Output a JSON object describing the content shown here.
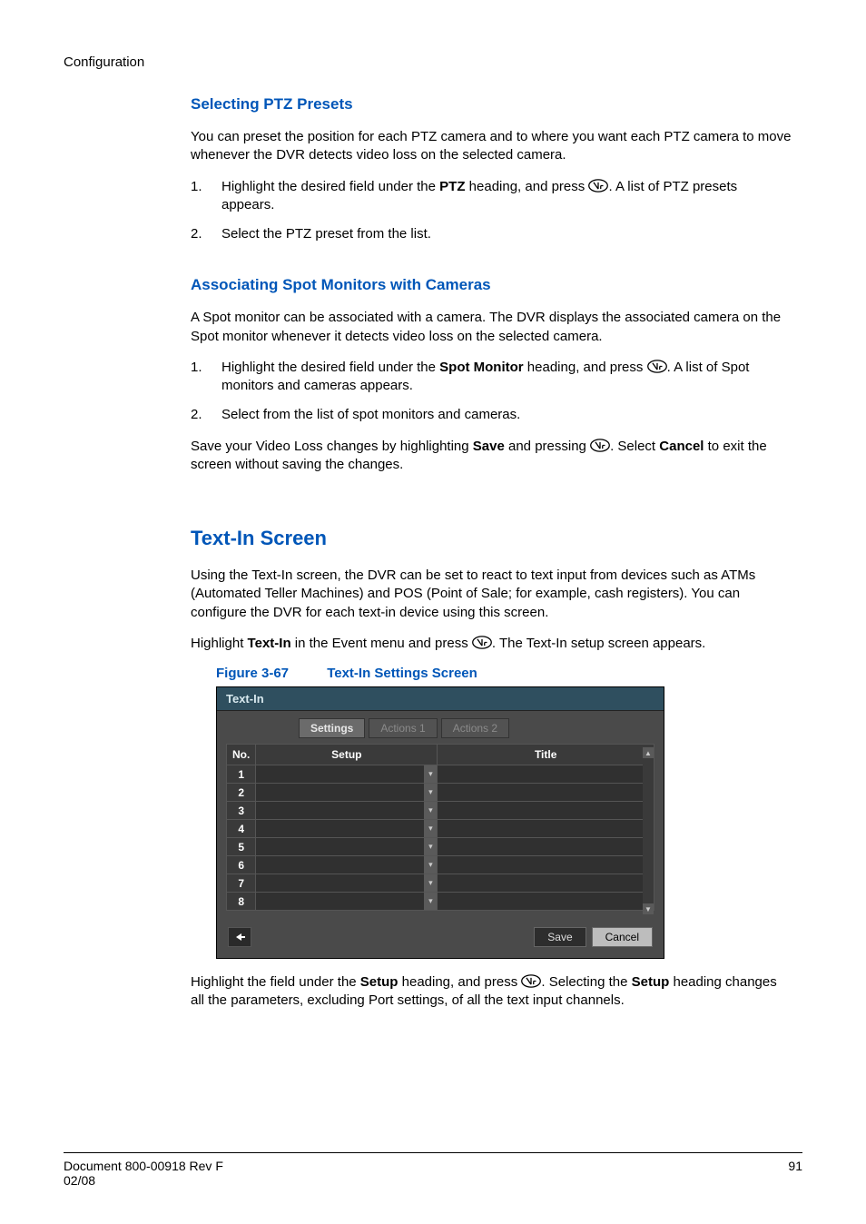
{
  "header": {
    "running_head": "Configuration"
  },
  "section1": {
    "heading": "Selecting PTZ Presets",
    "intro": "You can preset the position for each PTZ camera and to where you want each PTZ camera to move whenever the DVR detects video loss on the selected camera.",
    "step1_a": "Highlight the desired field under the ",
    "step1_bold": "PTZ",
    "step1_b": " heading, and press ",
    "step1_c": ". A list of PTZ presets appears.",
    "step2": "Select the PTZ preset from the list."
  },
  "section2": {
    "heading": "Associating Spot Monitors with Cameras",
    "intro": "A Spot monitor can be associated with a camera. The DVR displays the associated camera on the Spot monitor whenever it detects video loss on the selected camera.",
    "step1_a": "Highlight the desired field under the ",
    "step1_bold": "Spot Monitor",
    "step1_b": " heading, and press ",
    "step1_c": ". A list of Spot monitors and cameras appears.",
    "step2": "Select from the list of spot monitors and cameras.",
    "save_a": "Save your Video Loss changes by highlighting ",
    "save_bold1": "Save",
    "save_b": " and pressing ",
    "save_c": ". Select ",
    "save_bold2": "Cancel",
    "save_d": " to exit the screen without saving the changes."
  },
  "section3": {
    "heading": "Text-In Screen",
    "intro": "Using the Text-In screen, the DVR can be set to react to text input from devices such as ATMs (Automated Teller Machines) and POS (Point of Sale; for example, cash registers). You can configure the DVR for each text-in device using this screen.",
    "hl_a": "Highlight ",
    "hl_bold": "Text-In",
    "hl_b": " in the Event menu and press ",
    "hl_c": ". The Text-In setup screen appears.",
    "fig_label": "Figure 3-67",
    "fig_title": "Text-In Settings Screen",
    "outro_a": "Highlight the field under the ",
    "outro_bold1": "Setup",
    "outro_b": " heading, and press ",
    "outro_c": ". Selecting the ",
    "outro_bold2": "Setup",
    "outro_d": " heading changes all the parameters, excluding Port settings, of all the text input channels."
  },
  "screenshot": {
    "title": "Text-In",
    "tabs": {
      "t1": "Settings",
      "t2": "Actions 1",
      "t3": "Actions 2"
    },
    "cols": {
      "no": "No.",
      "setup": "Setup",
      "title": "Title"
    },
    "rows": [
      "1",
      "2",
      "3",
      "4",
      "5",
      "6",
      "7",
      "8"
    ],
    "buttons": {
      "save": "Save",
      "cancel": "Cancel"
    },
    "colors": {
      "window_bg": "#4a4a4a",
      "titlebar_bg": "#2f4f5f",
      "header_bg": "#3a3a3a",
      "cell_bg": "#303030",
      "text": "#ffffff"
    }
  },
  "footer": {
    "doc_line1": "Document 800-00918 Rev F",
    "doc_line2": "02/08",
    "page": "91"
  },
  "colors": {
    "heading": "#0056b8",
    "body": "#000000",
    "background": "#ffffff"
  }
}
